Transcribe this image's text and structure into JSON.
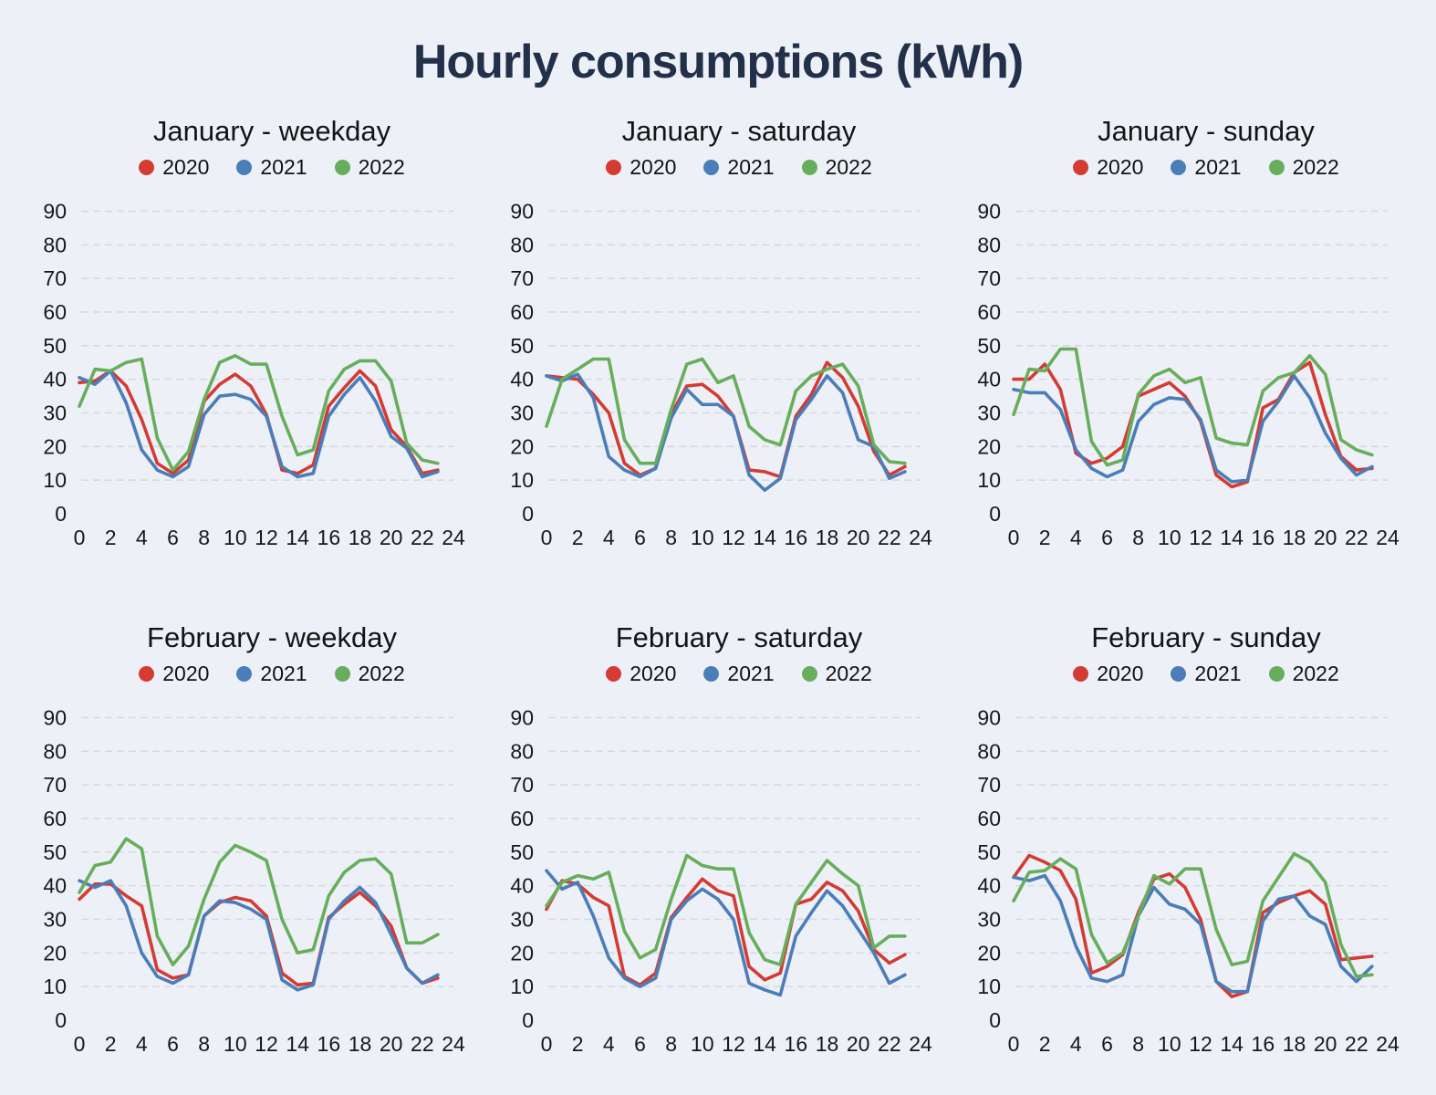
{
  "page": {
    "title": "Hourly consumptions (kWh)",
    "background_color": "#edf1f7",
    "title_color": "#22304a"
  },
  "legend": {
    "labels": [
      "2020",
      "2021",
      "2022"
    ]
  },
  "series_colors": {
    "2020": "#d33b33",
    "2021": "#4b7db8",
    "2022": "#67ae5c"
  },
  "axes": {
    "yticks": [
      0,
      10,
      20,
      30,
      40,
      50,
      60,
      70,
      80,
      90
    ],
    "xticks": [
      0,
      2,
      4,
      6,
      8,
      10,
      12,
      14,
      16,
      18,
      20,
      22,
      24
    ],
    "ylim": [
      0,
      95
    ],
    "xlim": [
      0,
      24
    ],
    "grid": "horizontal-dashed",
    "legend_position": "top"
  },
  "chart_data": [
    {
      "type": "line",
      "title": "January - weekday",
      "hours": [
        0,
        1,
        2,
        3,
        4,
        5,
        6,
        7,
        8,
        9,
        10,
        11,
        12,
        13,
        14,
        15,
        16,
        17,
        18,
        19,
        20,
        21,
        22,
        23
      ],
      "ylim": [
        0,
        95
      ],
      "series": [
        {
          "name": "2020",
          "color": "#d33b33",
          "values": [
            39,
            39.5,
            42.5,
            38,
            28,
            15,
            12,
            16,
            33.5,
            38.5,
            41.5,
            38,
            29.5,
            13,
            12,
            14.5,
            32,
            37.5,
            42.5,
            38,
            25,
            20,
            12,
            13
          ]
        },
        {
          "name": "2021",
          "color": "#4b7db8",
          "values": [
            40.5,
            38.5,
            42.5,
            33,
            19,
            13,
            11,
            14,
            29.5,
            35,
            35.5,
            34,
            29,
            14,
            11,
            12,
            29,
            35.5,
            40.5,
            33.5,
            23,
            19.5,
            11,
            12.5
          ]
        },
        {
          "name": "2022",
          "color": "#67ae5c",
          "values": [
            32,
            43,
            42.5,
            45,
            46,
            22.5,
            13,
            18.5,
            34,
            45,
            47,
            44.5,
            44.5,
            29,
            17.5,
            19,
            36.5,
            43,
            45.5,
            45.5,
            39.5,
            21,
            16,
            15
          ]
        }
      ]
    },
    {
      "type": "line",
      "title": "January - saturday",
      "hours": [
        0,
        1,
        2,
        3,
        4,
        5,
        6,
        7,
        8,
        9,
        10,
        11,
        12,
        13,
        14,
        15,
        16,
        17,
        18,
        19,
        20,
        21,
        22,
        23
      ],
      "ylim": [
        0,
        95
      ],
      "series": [
        {
          "name": "2020",
          "color": "#d33b33",
          "values": [
            41,
            40.5,
            40,
            35.5,
            30,
            15,
            11.5,
            13.5,
            29.5,
            38,
            38.5,
            35,
            29,
            13,
            12.5,
            11,
            29,
            35.5,
            45,
            40.5,
            32,
            18.5,
            11.5,
            14
          ]
        },
        {
          "name": "2021",
          "color": "#4b7db8",
          "values": [
            41,
            39.5,
            41.5,
            34.5,
            17,
            13,
            11,
            13.5,
            28.5,
            37,
            32.5,
            32.5,
            29,
            11.5,
            7,
            10.5,
            28,
            34,
            41,
            36,
            22,
            20,
            10.5,
            12.5
          ]
        },
        {
          "name": "2022",
          "color": "#67ae5c",
          "values": [
            26,
            40,
            43,
            46,
            46,
            22,
            15,
            15,
            31,
            44.5,
            46,
            39,
            41,
            26,
            22,
            20.5,
            36.5,
            41,
            43,
            44.5,
            38,
            20.5,
            15.5,
            15
          ]
        }
      ]
    },
    {
      "type": "line",
      "title": "January - sunday",
      "hours": [
        0,
        1,
        2,
        3,
        4,
        5,
        6,
        7,
        8,
        9,
        10,
        11,
        12,
        13,
        14,
        15,
        16,
        17,
        18,
        19,
        20,
        21,
        22,
        23
      ],
      "ylim": [
        0,
        95
      ],
      "series": [
        {
          "name": "2020",
          "color": "#d33b33",
          "values": [
            40,
            40,
            44.5,
            37,
            18,
            15,
            16.5,
            20,
            35,
            37,
            39,
            35,
            27.5,
            11.5,
            8,
            9.5,
            31.5,
            34,
            42,
            45,
            29.5,
            17,
            13,
            13.5
          ]
        },
        {
          "name": "2021",
          "color": "#4b7db8",
          "values": [
            37,
            36,
            36,
            31,
            19,
            13.5,
            11,
            13,
            27.5,
            32.5,
            34.5,
            34,
            28,
            13,
            9.5,
            10,
            27.5,
            33.5,
            41,
            34.5,
            24,
            16.5,
            11.5,
            14
          ]
        },
        {
          "name": "2022",
          "color": "#67ae5c",
          "values": [
            29.5,
            43,
            42.5,
            49,
            49,
            21.5,
            14.5,
            16,
            35.5,
            41,
            43,
            39,
            40.5,
            22.5,
            21,
            20.5,
            36.5,
            40.5,
            42,
            47,
            41.5,
            22,
            19,
            17.5
          ]
        }
      ]
    },
    {
      "type": "line",
      "title": "February - weekday",
      "hours": [
        0,
        1,
        2,
        3,
        4,
        5,
        6,
        7,
        8,
        9,
        10,
        11,
        12,
        13,
        14,
        15,
        16,
        17,
        18,
        19,
        20,
        21,
        22,
        23
      ],
      "ylim": [
        0,
        95
      ],
      "series": [
        {
          "name": "2020",
          "color": "#d33b33",
          "values": [
            36,
            40.5,
            40.5,
            37,
            34,
            15,
            12.5,
            13.5,
            31,
            35,
            36.5,
            35.5,
            31,
            14,
            10.5,
            11,
            30.5,
            34.5,
            38,
            34,
            28,
            15.5,
            11,
            12.5
          ]
        },
        {
          "name": "2021",
          "color": "#4b7db8",
          "values": [
            41.5,
            39.5,
            41.5,
            34,
            20,
            13,
            11,
            13.5,
            31,
            35.5,
            35,
            33,
            30,
            12,
            9,
            10.5,
            30,
            35.5,
            39.5,
            35,
            25.5,
            15.5,
            11,
            13.5
          ]
        },
        {
          "name": "2022",
          "color": "#67ae5c",
          "values": [
            38,
            46,
            47,
            54,
            51,
            25,
            16.5,
            22,
            36,
            47,
            52,
            50,
            47.5,
            30,
            20,
            21,
            37,
            44,
            47.5,
            48,
            43.5,
            23,
            23,
            25.5
          ]
        }
      ]
    },
    {
      "type": "line",
      "title": "February - saturday",
      "hours": [
        0,
        1,
        2,
        3,
        4,
        5,
        6,
        7,
        8,
        9,
        10,
        11,
        12,
        13,
        14,
        15,
        16,
        17,
        18,
        19,
        20,
        21,
        22,
        23
      ],
      "ylim": [
        0,
        95
      ],
      "series": [
        {
          "name": "2020",
          "color": "#d33b33",
          "values": [
            33,
            41.5,
            40.5,
            36.5,
            34,
            13,
            10.5,
            14,
            30.5,
            36.5,
            42,
            38.5,
            37,
            16,
            12,
            14,
            34.5,
            36,
            41,
            38.5,
            32.5,
            21,
            17,
            19.5
          ]
        },
        {
          "name": "2021",
          "color": "#4b7db8",
          "values": [
            44.5,
            39,
            41,
            31,
            18.5,
            12.5,
            10,
            12.5,
            30,
            35.5,
            39,
            36,
            30,
            11,
            9,
            7.5,
            25,
            32,
            38.5,
            34,
            27,
            20,
            11,
            13.5
          ]
        },
        {
          "name": "2022",
          "color": "#67ae5c",
          "values": [
            34,
            41,
            43,
            42,
            44,
            26.5,
            18.5,
            21,
            36,
            49,
            46,
            45,
            45,
            26,
            18,
            16.5,
            34.5,
            41,
            47.5,
            43.5,
            40,
            21.5,
            25,
            25
          ]
        }
      ]
    },
    {
      "type": "line",
      "title": "February - sunday",
      "hours": [
        0,
        1,
        2,
        3,
        4,
        5,
        6,
        7,
        8,
        9,
        10,
        11,
        12,
        13,
        14,
        15,
        16,
        17,
        18,
        19,
        20,
        21,
        22,
        23
      ],
      "ylim": [
        0,
        95
      ],
      "series": [
        {
          "name": "2020",
          "color": "#d33b33",
          "values": [
            42.5,
            49,
            47,
            44.5,
            36,
            14,
            16,
            19.5,
            32,
            42,
            43.5,
            39.5,
            30,
            11.5,
            7,
            8.5,
            32,
            35,
            37,
            38.5,
            34.5,
            18,
            18.5,
            19
          ]
        },
        {
          "name": "2021",
          "color": "#4b7db8",
          "values": [
            42.5,
            41.5,
            43,
            35.5,
            22,
            12.5,
            11.5,
            13.5,
            31,
            39.5,
            34.5,
            33,
            28.5,
            11.5,
            8.5,
            8.5,
            29.5,
            36,
            37,
            31,
            28.5,
            16,
            11.5,
            16
          ]
        },
        {
          "name": "2022",
          "color": "#67ae5c",
          "values": [
            35.5,
            44,
            44.5,
            48,
            45,
            25.5,
            17,
            20,
            31,
            43,
            40.5,
            45,
            45,
            27,
            16.5,
            17.5,
            35.5,
            42.5,
            49.5,
            47,
            41,
            22.5,
            13,
            13.5
          ]
        }
      ]
    }
  ]
}
